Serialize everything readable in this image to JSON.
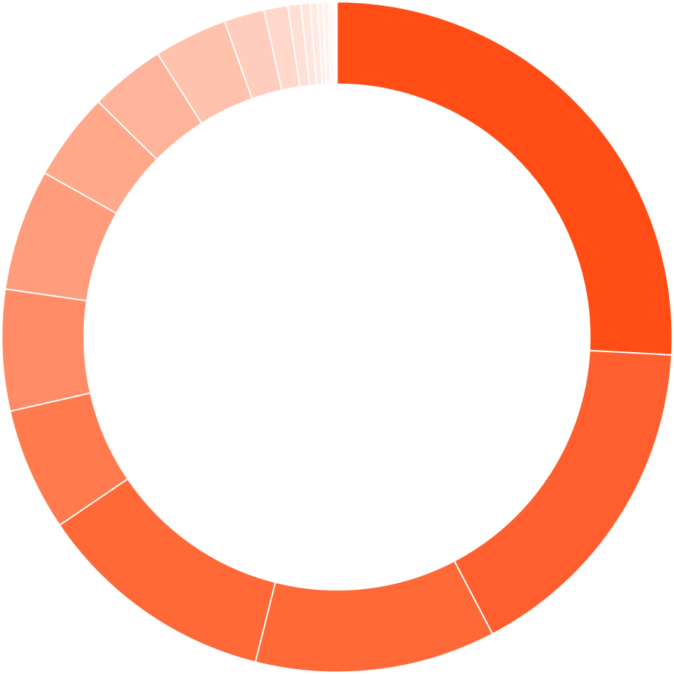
{
  "chart_data": {
    "type": "pie",
    "variant": "donut",
    "title": "",
    "legend": "none",
    "start": "top",
    "direction": "clockwise",
    "values": [
      29.2,
      18.6,
      13.1,
      13.1,
      6.7,
      6.6,
      6.6,
      4.8,
      4.1,
      4.0,
      2.2,
      1.3,
      0.7,
      0.5,
      0.4,
      0.3,
      0.3,
      0.2,
      0.15,
      0.1
    ],
    "colors": [
      "#ff4d15",
      "#ff5f2e",
      "#ff6837",
      "#ff6837",
      "#ff7b4e",
      "#ff8c66",
      "#ff9c7b",
      "#ffa88a",
      "#ffb39a",
      "#ffc2ad",
      "#ffcdbd",
      "#ffd8cb",
      "#ffe0d6",
      "#ffe5dd",
      "#ffeae3",
      "#ffefea",
      "#fff2ee",
      "#fff5f2",
      "#fff8f6",
      "#fffbfa"
    ]
  }
}
